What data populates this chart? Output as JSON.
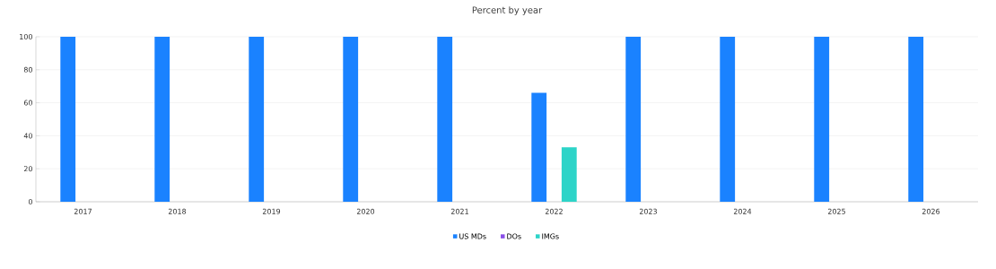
{
  "chart_data": {
    "type": "bar",
    "title": "Percent by year",
    "categories": [
      "2017",
      "2018",
      "2019",
      "2020",
      "2021",
      "2022",
      "2023",
      "2024",
      "2025",
      "2026"
    ],
    "series": [
      {
        "name": "US MDs",
        "color": "#1a82ff",
        "values": [
          100,
          100,
          100,
          100,
          100,
          66,
          100,
          100,
          100,
          100
        ]
      },
      {
        "name": "DOs",
        "color": "#8a4fe8",
        "values": [
          0,
          0,
          0,
          0,
          0,
          0,
          0,
          0,
          0,
          0
        ]
      },
      {
        "name": "IMGs",
        "color": "#2dd4c8",
        "values": [
          0,
          0,
          0,
          0,
          0,
          33,
          0,
          0,
          0,
          0
        ]
      }
    ],
    "ylim": [
      0,
      100
    ],
    "yticks": [
      0,
      20,
      40,
      60,
      80,
      100
    ],
    "grid": "y",
    "legend": "bottom"
  }
}
